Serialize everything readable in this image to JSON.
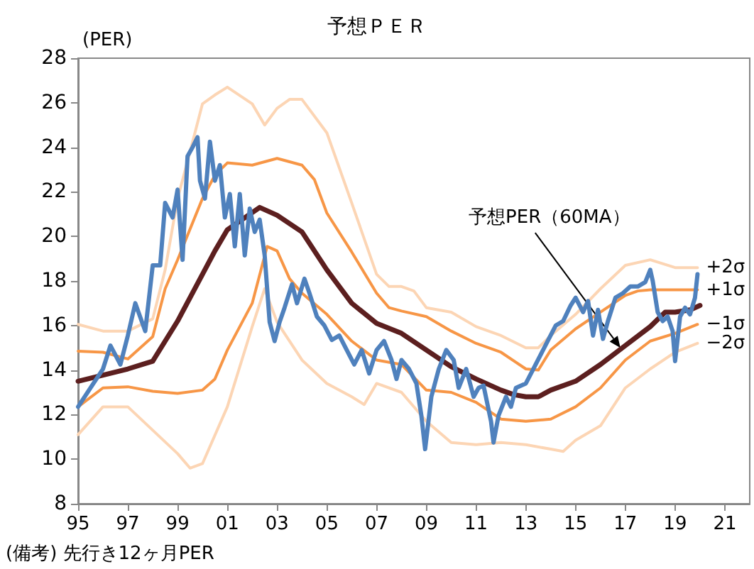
{
  "chart_data": {
    "type": "line",
    "title": "予想ＰＥＲ",
    "ylabel": "(PER)",
    "annotations": [
      "(備考) 先行き12ヶ月PER",
      {
        "text": "予想PER（60MA）",
        "x": 2016.8,
        "y": 15.0
      }
    ],
    "xlim": [
      1995,
      2022
    ],
    "xticks": [
      {
        "value": 1995,
        "label": "95"
      },
      {
        "value": 1997,
        "label": "97"
      },
      {
        "value": 1999,
        "label": "99"
      },
      {
        "value": 2001,
        "label": "01"
      },
      {
        "value": 2003,
        "label": "03"
      },
      {
        "value": 2005,
        "label": "05"
      },
      {
        "value": 2007,
        "label": "07"
      },
      {
        "value": 2009,
        "label": "09"
      },
      {
        "value": 2011,
        "label": "11"
      },
      {
        "value": 2013,
        "label": "13"
      },
      {
        "value": 2015,
        "label": "15"
      },
      {
        "value": 2017,
        "label": "17"
      },
      {
        "value": 2019,
        "label": "19"
      },
      {
        "value": 2021,
        "label": "21"
      }
    ],
    "ylim": [
      8,
      28
    ],
    "yticks": [
      8,
      10,
      12,
      14,
      16,
      18,
      20,
      22,
      24,
      26,
      28
    ],
    "grid": false,
    "legend": false,
    "marker": "none",
    "line_style": "solid",
    "series": [
      {
        "name": "+2σ",
        "color": "#fcd5b4",
        "x": [
          1995,
          1996,
          1997,
          1998,
          1998.5,
          1999,
          1999.5,
          2000,
          2000.5,
          2001,
          2002,
          2002.5,
          2003,
          2003.5,
          2004,
          2005,
          2006,
          2007,
          2007.5,
          2008,
          2008.5,
          2009,
          2010,
          2011,
          2012,
          2013,
          2013.5,
          2014,
          2015,
          2016,
          2017,
          2018,
          2019,
          2019.9
        ],
        "values": [
          16.05,
          15.75,
          15.75,
          16.3,
          18.5,
          21.7,
          23.8,
          25.95,
          26.35,
          26.7,
          25.95,
          25.0,
          25.75,
          26.15,
          26.15,
          24.65,
          21.5,
          18.3,
          17.75,
          17.75,
          17.55,
          16.8,
          16.6,
          15.95,
          15.55,
          15.0,
          15.0,
          15.55,
          16.5,
          17.65,
          18.7,
          18.95,
          18.6,
          18.6
        ]
      },
      {
        "name": "+1σ",
        "color": "#f79646",
        "x": [
          1995,
          1996,
          1997,
          1998,
          1998.5,
          1999,
          2000,
          2000.5,
          2001,
          2002,
          2003,
          2004,
          2004.5,
          2005,
          2006,
          2007,
          2007.5,
          2008,
          2009,
          2010,
          2011,
          2012,
          2013,
          2013.5,
          2014,
          2015,
          2016,
          2017,
          2017.5,
          2018,
          2019,
          2019.9
        ],
        "values": [
          14.85,
          14.8,
          14.5,
          15.5,
          17.65,
          18.95,
          21.7,
          22.75,
          23.3,
          23.2,
          23.5,
          23.2,
          22.55,
          21.05,
          19.3,
          17.45,
          16.8,
          16.65,
          16.4,
          15.75,
          15.2,
          14.8,
          14.05,
          14.0,
          14.9,
          15.85,
          16.6,
          17.35,
          17.55,
          17.6,
          17.6,
          17.6
        ]
      },
      {
        "name": "−1σ",
        "color": "#f79646",
        "x": [
          1995,
          1996,
          1997,
          1998,
          1999,
          2000,
          2000.5,
          2001,
          2002,
          2002.6,
          2003,
          2003.5,
          2004,
          2005,
          2006,
          2007,
          2008,
          2009,
          2010,
          2011,
          2012,
          2013,
          2014,
          2015,
          2016,
          2017,
          2018,
          2019,
          2019.9
        ],
        "values": [
          12.35,
          13.2,
          13.25,
          13.05,
          12.95,
          13.1,
          13.6,
          14.9,
          17.0,
          19.55,
          19.35,
          18.1,
          17.45,
          16.5,
          15.3,
          14.45,
          14.25,
          13.1,
          13.0,
          12.55,
          11.8,
          11.7,
          11.8,
          12.35,
          13.2,
          14.45,
          15.3,
          15.65,
          16.05
        ]
      },
      {
        "name": "−2σ",
        "color": "#fcd5b4",
        "x": [
          1995,
          1996,
          1997,
          1998,
          1999,
          1999.5,
          2000,
          2001,
          2002,
          2002.5,
          2003,
          2004,
          2005,
          2006,
          2006.5,
          2007,
          2008,
          2009,
          2010,
          2011,
          2012,
          2013,
          2014,
          2014.5,
          2015,
          2016,
          2017,
          2018,
          2019,
          2019.9
        ],
        "values": [
          11.1,
          12.35,
          12.35,
          11.3,
          10.25,
          9.6,
          9.8,
          12.35,
          15.95,
          17.65,
          16.15,
          14.45,
          13.4,
          12.8,
          12.45,
          13.4,
          13.0,
          11.7,
          10.75,
          10.65,
          10.75,
          10.65,
          10.45,
          10.35,
          10.85,
          11.5,
          13.2,
          14.05,
          14.8,
          15.2
        ]
      },
      {
        "color": "#5c1f1f",
        "x": [
          1995,
          1997,
          1998,
          1999,
          2000,
          2000.5,
          2001,
          2002.3,
          2003,
          2004,
          2005,
          2006,
          2007,
          2008,
          2009,
          2010,
          2011,
          2012,
          2012.5,
          2013,
          2013.5,
          2014,
          2015,
          2016,
          2017,
          2018,
          2018.6,
          2019,
          2019.6,
          2020
        ],
        "values": [
          13.5,
          14.05,
          14.4,
          16.2,
          18.3,
          19.35,
          20.3,
          21.3,
          20.95,
          20.2,
          18.5,
          17.0,
          16.1,
          15.65,
          14.9,
          14.15,
          13.6,
          13.1,
          12.9,
          12.8,
          12.8,
          13.1,
          13.5,
          14.25,
          15.1,
          15.95,
          16.6,
          16.6,
          16.7,
          16.9
        ]
      },
      {
        "color": "#4f81bd",
        "x": [
          1995,
          1995.5,
          1996,
          1996.3,
          1996.7,
          1997,
          1997.3,
          1997.7,
          1998,
          1998.3,
          1998.5,
          1998.8,
          1999,
          1999.2,
          1999.4,
          1999.6,
          1999.8,
          1999.9,
          2000.1,
          2000.3,
          2000.5,
          2000.7,
          2000.9,
          2001.1,
          2001.3,
          2001.5,
          2001.7,
          2001.9,
          2002.1,
          2002.3,
          2002.5,
          2002.7,
          2002.9,
          2003.1,
          2003.3,
          2003.6,
          2003.8,
          2004.1,
          2004.3,
          2004.6,
          2004.9,
          2005.2,
          2005.5,
          2005.8,
          2006.1,
          2006.4,
          2006.7,
          2007,
          2007.3,
          2007.6,
          2007.8,
          2008,
          2008.3,
          2008.6,
          2008.8,
          2008.95,
          2009.2,
          2009.5,
          2009.8,
          2010.1,
          2010.3,
          2010.6,
          2010.9,
          2011.1,
          2011.3,
          2011.6,
          2011.7,
          2011.9,
          2012.2,
          2012.4,
          2012.6,
          2013,
          2013.3,
          2013.6,
          2013.9,
          2014.2,
          2014.5,
          2014.8,
          2015,
          2015.3,
          2015.5,
          2015.7,
          2015.9,
          2016.1,
          2016.3,
          2016.6,
          2016.9,
          2017.2,
          2017.5,
          2017.8,
          2018,
          2018.1,
          2018.3,
          2018.5,
          2018.7,
          2018.9,
          2019,
          2019.2,
          2019.4,
          2019.6,
          2019.8,
          2019.9
        ],
        "values": [
          12.35,
          13.2,
          14.05,
          15.1,
          14.25,
          15.55,
          17.0,
          15.75,
          18.7,
          18.7,
          21.5,
          20.85,
          22.1,
          18.95,
          23.6,
          24.0,
          24.45,
          22.5,
          21.7,
          24.25,
          22.5,
          23.2,
          20.85,
          21.9,
          19.55,
          21.9,
          19.15,
          21.25,
          20.2,
          20.75,
          19.15,
          16.15,
          15.3,
          16.15,
          16.8,
          17.85,
          17.0,
          18.1,
          17.45,
          16.4,
          16.0,
          15.35,
          15.55,
          14.9,
          14.25,
          14.9,
          13.85,
          14.9,
          15.3,
          14.45,
          13.6,
          14.45,
          14.05,
          13.4,
          11.95,
          10.45,
          12.8,
          14.05,
          14.9,
          14.45,
          13.2,
          14.05,
          12.8,
          13.2,
          13.3,
          11.7,
          10.75,
          11.95,
          12.8,
          12.35,
          13.2,
          13.4,
          14.05,
          14.7,
          15.35,
          16.0,
          16.2,
          16.9,
          17.25,
          16.6,
          17.1,
          15.55,
          16.7,
          15.4,
          16.2,
          17.25,
          17.45,
          17.75,
          17.75,
          17.95,
          18.5,
          18.0,
          16.6,
          16.2,
          16.4,
          15.75,
          14.4,
          16.4,
          16.8,
          16.5,
          17.25,
          18.3
        ]
      }
    ]
  }
}
